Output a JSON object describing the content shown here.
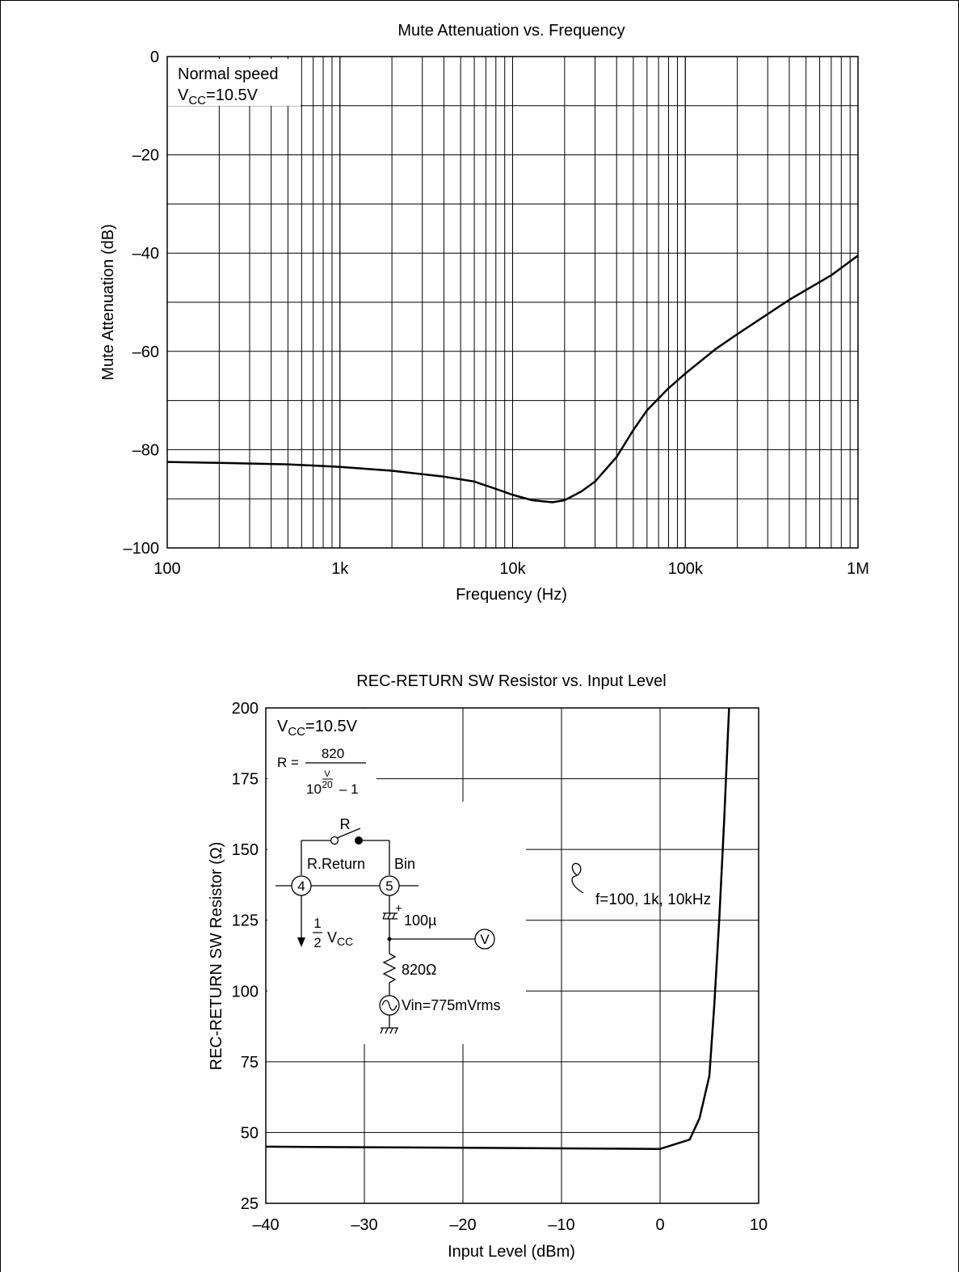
{
  "chart_data": [
    {
      "type": "line",
      "title": "Mute Attenuation vs. Frequency",
      "xlabel": "Frequency  (Hz)",
      "ylabel": "Mute Attenuation  (dB)",
      "xscale": "log",
      "xlim": [
        100,
        1000000
      ],
      "ylim": [
        -100,
        0
      ],
      "grid": true,
      "x_ticks": [
        "100",
        "1k",
        "10k",
        "100k",
        "1M"
      ],
      "y_ticks": [
        "0",
        "–20",
        "–40",
        "–60",
        "–80",
        "–100"
      ],
      "annotation": {
        "line1": "Normal speed",
        "line2_main": "V",
        "line2_sub": "CC",
        "line2_rest": "=10.5V"
      },
      "series": [
        {
          "x": [
            100,
            200,
            500,
            1000,
            2000,
            4000,
            6000,
            8000,
            10000,
            13000,
            17000,
            20000,
            25000,
            30000,
            40000,
            50000,
            60000,
            80000,
            100000,
            150000,
            200000,
            400000,
            700000,
            1000000
          ],
          "y": [
            -82.5,
            -82.7,
            -83.0,
            -83.5,
            -84.3,
            -85.5,
            -86.5,
            -88.0,
            -89.2,
            -90.3,
            -90.7,
            -90.3,
            -88.5,
            -86.5,
            -81.5,
            -76.0,
            -72.0,
            -67.5,
            -64.5,
            -59.5,
            -56.5,
            -49.5,
            -44.5,
            -40.5
          ]
        }
      ]
    },
    {
      "type": "line",
      "title": "REC-RETURN SW Resistor vs. Input Level",
      "xlabel": "Input Level  (dBm)",
      "ylabel": "REC-RETURN SW Resistor  (Ω)",
      "xlim": [
        -40,
        10
      ],
      "ylim": [
        25,
        200
      ],
      "grid": true,
      "x_ticks": [
        "–40",
        "–30",
        "–20",
        "–10",
        "0",
        "10"
      ],
      "y_ticks": [
        "200",
        "175",
        "150",
        "125",
        "100",
        "75",
        "50",
        "25"
      ],
      "annotation": {
        "vcc_main": "V",
        "vcc_sub": "CC",
        "vcc_rest": "=10.5V",
        "formula_lhs": "R =",
        "formula_num": "820",
        "formula_base": "10",
        "formula_exp_num": "V",
        "formula_exp_den": "20",
        "formula_minus": "– 1",
        "curve_label": "f=100, 1k, 10kHz"
      },
      "circuit": {
        "switch_label": "R",
        "pin4_label": "R.Return",
        "pin5_label": "Bin",
        "pin4": "4",
        "pin5": "5",
        "half_num": "1",
        "half_den": "2",
        "half_v": "V",
        "half_sub": "CC",
        "cap_plus": "+",
        "cap_label": "100µ",
        "meter": "V",
        "res_label": "820Ω",
        "source_label": "Vin=775mVrms"
      },
      "series": [
        {
          "x": [
            -40,
            -30,
            -20,
            -10,
            -5,
            0,
            3,
            4,
            5,
            5.5,
            6,
            6.5,
            7
          ],
          "y": [
            45,
            44.8,
            44.6,
            44.4,
            44.3,
            44.2,
            47.5,
            55,
            70,
            95,
            125,
            160,
            200
          ]
        }
      ]
    }
  ]
}
